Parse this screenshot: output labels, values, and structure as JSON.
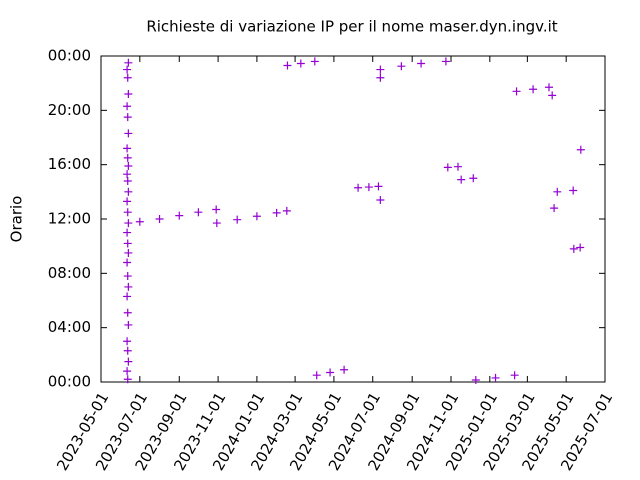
{
  "chart_data": {
    "type": "scatter",
    "title": "Richieste di variazione IP per il nome maser.dyn.ingv.it",
    "y_label": "Orario",
    "color": "#9400d3",
    "x": [
      "2023-06-12",
      "2023-06-11",
      "2023-06-13",
      "2023-06-12",
      "2023-06-11",
      "2023-06-13",
      "2023-06-12",
      "2023-06-11",
      "2023-06-13",
      "2023-06-12",
      "2023-06-11",
      "2023-06-13",
      "2023-06-12",
      "2023-06-11",
      "2023-06-13",
      "2023-06-12",
      "2023-06-11",
      "2023-06-13",
      "2023-06-12",
      "2023-06-11",
      "2023-06-13",
      "2023-06-12",
      "2023-06-11",
      "2023-06-13",
      "2023-06-12",
      "2023-06-11",
      "2023-06-13",
      "2023-06-12",
      "2023-06-11",
      "2023-06-13",
      "2023-07-01",
      "2023-08-01",
      "2023-09-01",
      "2023-10-01",
      "2023-10-29",
      "2023-10-30",
      "2023-12-01",
      "2024-01-01",
      "2024-02-01",
      "2024-02-17",
      "2024-02-18",
      "2024-03-10",
      "2024-04-01",
      "2024-04-04",
      "2024-04-25",
      "2024-05-17",
      "2024-06-08",
      "2024-06-25",
      "2024-07-10",
      "2024-07-13",
      "2024-07-13",
      "2024-08-15",
      "2024-09-15",
      "2024-10-24",
      "2024-07-13",
      "2024-10-27",
      "2024-11-12",
      "2024-11-17",
      "2024-12-06",
      "2024-12-10",
      "2025-01-10",
      "2025-02-09",
      "2025-02-12",
      "2025-03-10",
      "2025-04-04",
      "2025-04-09",
      "2025-04-12",
      "2025-04-17",
      "2025-05-12",
      "2025-05-13",
      "2025-05-23",
      "2025-05-24"
    ],
    "values": [
      0.2,
      0.8,
      1.5,
      2.3,
      3.0,
      4.2,
      5.1,
      6.3,
      7.0,
      7.8,
      8.8,
      9.5,
      10.2,
      11.0,
      11.7,
      12.5,
      13.3,
      14.0,
      14.8,
      15.3,
      15.9,
      16.5,
      17.2,
      18.3,
      19.5,
      20.3,
      21.2,
      22.4,
      23.0,
      23.5,
      11.8,
      12.0,
      12.25,
      12.5,
      12.7,
      11.7,
      11.95,
      12.2,
      12.45,
      12.6,
      23.3,
      23.45,
      23.6,
      0.5,
      0.7,
      0.9,
      14.3,
      14.35,
      14.4,
      13.4,
      23.0,
      23.25,
      23.45,
      23.6,
      22.4,
      15.8,
      15.85,
      14.9,
      15.0,
      0.15,
      0.3,
      0.5,
      21.4,
      21.55,
      21.7,
      21.1,
      12.8,
      14.0,
      14.1,
      9.8,
      9.9,
      17.1
    ],
    "xlim": [
      "2023-05-01",
      "2025-07-01"
    ],
    "xticks": [
      "2023-05-01",
      "2023-07-01",
      "2023-09-01",
      "2023-11-01",
      "2024-01-01",
      "2024-03-01",
      "2024-05-01",
      "2024-07-01",
      "2024-09-01",
      "2024-11-01",
      "2025-01-01",
      "2025-03-01",
      "2025-05-01",
      "2025-07-01"
    ],
    "ylim": [
      0,
      24
    ],
    "yticks": [
      {
        "value": 0,
        "label": "00:00"
      },
      {
        "value": 4,
        "label": "04:00"
      },
      {
        "value": 8,
        "label": "08:00"
      },
      {
        "value": 12,
        "label": "12:00"
      },
      {
        "value": 16,
        "label": "16:00"
      },
      {
        "value": 20,
        "label": "20:00"
      },
      {
        "value": 24,
        "label": "00:00"
      }
    ]
  }
}
